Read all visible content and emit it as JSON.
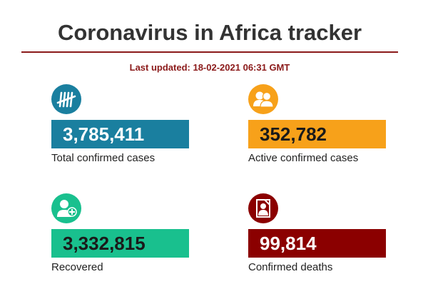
{
  "header": {
    "title": "Coronavirus in Africa tracker",
    "last_updated": "Last updated: 18-02-2021 06:31 GMT"
  },
  "stats": [
    {
      "value": "3,785,411",
      "label": "Total confirmed cases",
      "icon": "tally-marks-icon",
      "bar_color": "#1a7f9f",
      "text_color": "#ffffff"
    },
    {
      "value": "352,782",
      "label": "Active confirmed cases",
      "icon": "people-group-icon",
      "bar_color": "#f7a11a",
      "text_color": "#1a1a1a"
    },
    {
      "value": "3,332,815",
      "label": "Recovered",
      "icon": "recovered-person-plus-icon",
      "bar_color": "#19c08e",
      "text_color": "#1a1a1a"
    },
    {
      "value": "99,814",
      "label": "Confirmed deaths",
      "icon": "memorial-portrait-icon",
      "bar_color": "#8b0000",
      "text_color": "#ffffff"
    }
  ]
}
